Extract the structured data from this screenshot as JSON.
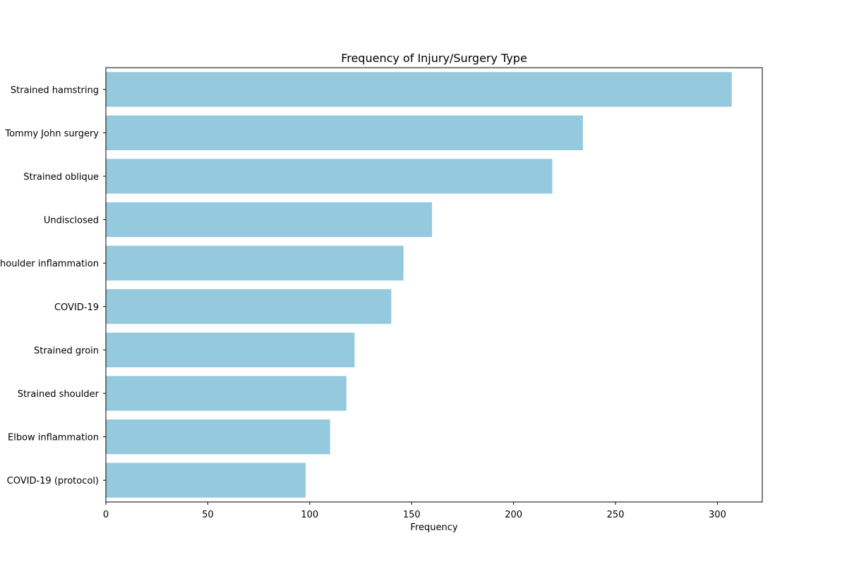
{
  "chart_data": {
    "type": "bar",
    "orientation": "horizontal",
    "title": "Frequency of Injury/Surgery Type",
    "xlabel": "Frequency",
    "ylabel": "",
    "categories": [
      "Strained hamstring",
      "Tommy John surgery",
      "Strained oblique",
      "Undisclosed",
      "Shoulder inflammation",
      "COVID-19",
      "Strained groin",
      "Strained shoulder",
      "Elbow inflammation",
      "COVID-19 (protocol)"
    ],
    "values": [
      307,
      234,
      219,
      160,
      146,
      140,
      122,
      118,
      110,
      98
    ],
    "xlim": [
      0,
      322
    ],
    "xticks": [
      0,
      50,
      100,
      150,
      200,
      250,
      300
    ],
    "bar_color": "#95c9de",
    "grid": false,
    "legend": "none"
  }
}
